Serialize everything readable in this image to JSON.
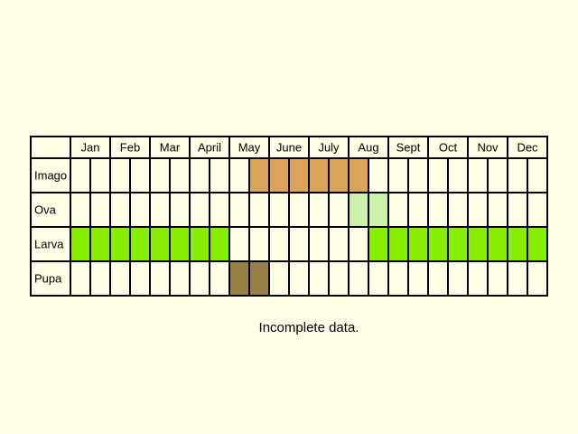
{
  "chart_data": {
    "type": "table",
    "months": [
      "Jan",
      "Feb",
      "Mar",
      "April",
      "May",
      "June",
      "July",
      "Aug",
      "Sept",
      "Oct",
      "Nov",
      "Dec"
    ],
    "half_month_periods_per_month": 2,
    "stages": [
      {
        "label": "Imago",
        "color": "#d9a45a",
        "active_half_months": [
          9,
          10,
          11,
          12,
          13,
          14
        ]
      },
      {
        "label": "Ova",
        "color": "#ccf0a8",
        "active_half_months": [
          14,
          15
        ]
      },
      {
        "label": "Larva",
        "color": "#88ee00",
        "active_half_months": [
          0,
          1,
          2,
          3,
          4,
          5,
          6,
          7,
          15,
          16,
          17,
          18,
          19,
          20,
          21,
          22,
          23
        ]
      },
      {
        "label": "Pupa",
        "color": "#978046",
        "active_half_months": [
          8,
          9
        ]
      }
    ],
    "grid_color": "#000000",
    "background_color": "#fffde6"
  },
  "note": "Incomplete data."
}
